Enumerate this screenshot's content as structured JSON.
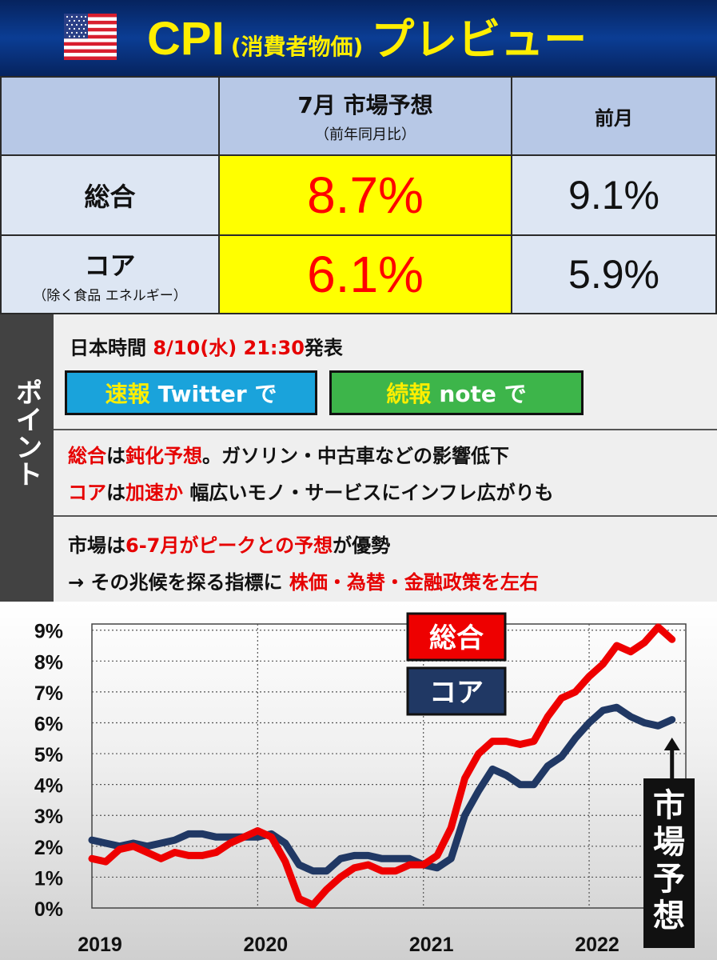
{
  "header": {
    "title_main": "CPI",
    "title_paren": "(消費者物価)",
    "title_tail": "プレビュー"
  },
  "table": {
    "col_forecast": "7月 市場予想",
    "col_forecast_sub": "（前年同月比）",
    "col_previous": "前月",
    "rows": [
      {
        "label": "総合",
        "sub": "",
        "forecast": "8.7%",
        "previous": "9.1%"
      },
      {
        "label": "コア",
        "sub": "（除く食品 エネルギー）",
        "forecast": "6.1%",
        "previous": "5.9%"
      }
    ]
  },
  "points": {
    "side_label": "ポイント",
    "release_prefix": "日本時間 ",
    "release_time": "8/10(水) 21:30",
    "release_suffix": "発表",
    "btn_twitter_a": "速報",
    "btn_twitter_b": "Twitter で",
    "btn_note_a": "続報",
    "btn_note_b": "note で",
    "line1": [
      {
        "t": "総合",
        "red": true
      },
      {
        "t": "は",
        "red": false
      },
      {
        "t": "鈍化予想",
        "red": true
      },
      {
        "t": "。ガソリン・中古車などの影響低下",
        "red": false
      }
    ],
    "line2": [
      {
        "t": "コア",
        "red": true
      },
      {
        "t": "は",
        "red": false
      },
      {
        "t": "加速か",
        "red": true
      },
      {
        "t": " 幅広いモノ・サービスにインフレ広がりも",
        "red": false
      }
    ],
    "line3": [
      {
        "t": "市場は",
        "red": false
      },
      {
        "t": "6-7月がピークとの予想",
        "red": true
      },
      {
        "t": "が優勢",
        "red": false
      }
    ],
    "line4": [
      {
        "t": "→ その兆候を探る指標に ",
        "red": false
      },
      {
        "t": "株価・為替・金融政策を左右",
        "red": true
      }
    ]
  },
  "chart_data": {
    "type": "line",
    "x_start": "2019-01",
    "x_ticks": [
      "2019",
      "2020",
      "2021",
      "2022"
    ],
    "y_ticks": [
      "0%",
      "1%",
      "2%",
      "3%",
      "4%",
      "5%",
      "6%",
      "7%",
      "8%",
      "9%"
    ],
    "ylim": [
      0,
      9.2
    ],
    "grid": true,
    "legend": [
      "総合",
      "コア"
    ],
    "annotation": "市場予想",
    "series": [
      {
        "name": "総合",
        "color": "#ee0000",
        "values": [
          1.6,
          1.5,
          1.9,
          2.0,
          1.8,
          1.6,
          1.8,
          1.7,
          1.7,
          1.8,
          2.1,
          2.3,
          2.5,
          2.3,
          1.5,
          0.3,
          0.1,
          0.6,
          1.0,
          1.3,
          1.4,
          1.2,
          1.2,
          1.4,
          1.4,
          1.7,
          2.6,
          4.2,
          5.0,
          5.4,
          5.4,
          5.3,
          5.4,
          6.2,
          6.8,
          7.0,
          7.5,
          7.9,
          8.5,
          8.3,
          8.6,
          9.1,
          8.7
        ]
      },
      {
        "name": "コア",
        "color": "#203864",
        "values": [
          2.2,
          2.1,
          2.0,
          2.1,
          2.0,
          2.1,
          2.2,
          2.4,
          2.4,
          2.3,
          2.3,
          2.3,
          2.3,
          2.4,
          2.1,
          1.4,
          1.2,
          1.2,
          1.6,
          1.7,
          1.7,
          1.6,
          1.6,
          1.6,
          1.4,
          1.3,
          1.6,
          3.0,
          3.8,
          4.5,
          4.3,
          4.0,
          4.0,
          4.6,
          4.9,
          5.5,
          6.0,
          6.4,
          6.5,
          6.2,
          6.0,
          5.9,
          6.1
        ]
      }
    ]
  }
}
